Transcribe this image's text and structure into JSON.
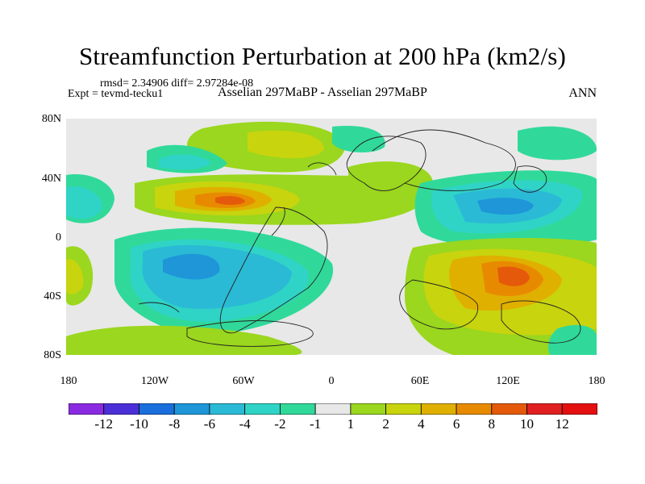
{
  "title": "Streamfunction Perturbation at 200 hPa (km2/s)",
  "stats": "rmsd= 2.34906 diff= 2.97284e-08",
  "expt": "Expt = tevmd-tecku1",
  "cases": "Asselian 297MaBP - Asselian 297MaBP",
  "season": "ANN",
  "y_ticks": [
    "80N",
    "40N",
    "0",
    "40S",
    "80S"
  ],
  "x_ticks": [
    "180",
    "120W",
    "60W",
    "0",
    "60E",
    "120E",
    "180"
  ],
  "colorbar": {
    "labels": [
      "-12",
      "-10",
      "-8",
      "-6",
      "-4",
      "-2",
      "-1",
      "1",
      "2",
      "4",
      "6",
      "8",
      "10",
      "12"
    ],
    "colors": [
      "#8a2be2",
      "#4b30d8",
      "#1a6fdc",
      "#1e96d8",
      "#2bbad6",
      "#2fd4c6",
      "#30d99a",
      "#e8e8e8",
      "#9ad71e",
      "#c8d40e",
      "#e0b000",
      "#e88a00",
      "#e45a0a",
      "#e02020",
      "#e41010"
    ]
  },
  "levels": {
    "pos1": "#9ad71e",
    "pos2": "#c8d40e",
    "pos4": "#e0b000",
    "pos6": "#e88a00",
    "pos8": "#e45a0a",
    "neg1": "#30d99a",
    "neg2": "#2fd4c6",
    "neg4": "#2bbad6",
    "neg6": "#1e96d8",
    "background": "#e8e8e8"
  }
}
